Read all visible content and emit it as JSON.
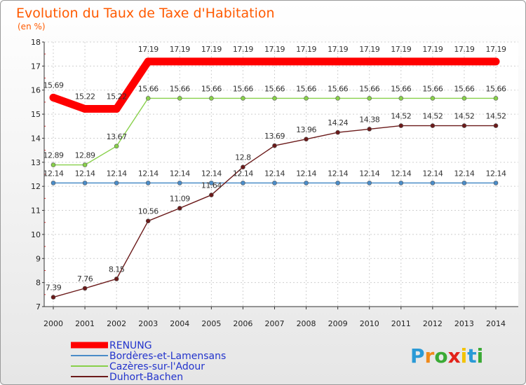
{
  "chart_data": {
    "type": "line",
    "title": "Evolution du Taux de Taxe d'Habitation",
    "subtitle": "(en %)",
    "x": [
      "2000",
      "2001",
      "2002",
      "2003",
      "2004",
      "2005",
      "2006",
      "2007",
      "2008",
      "2009",
      "2010",
      "2011",
      "2012",
      "2013",
      "2014"
    ],
    "ylim": [
      7,
      18
    ],
    "yticks": [
      7,
      8,
      9,
      10,
      11,
      12,
      13,
      14,
      15,
      16,
      17,
      18
    ],
    "grid": true,
    "legend_position": "bottom-left",
    "series": [
      {
        "name": "RENUNG",
        "color": "#ff0000",
        "values": [
          15.69,
          15.22,
          15.22,
          17.19,
          17.19,
          17.19,
          17.19,
          17.19,
          17.19,
          17.19,
          17.19,
          17.19,
          17.19,
          17.19,
          17.19
        ],
        "labels": [
          "15.69",
          "15.22",
          "15.22",
          "17.19",
          "17.19",
          "17.19",
          "17.19",
          "17.19",
          "17.19",
          "17.19",
          "17.19",
          "17.19",
          "17.19",
          "17.19",
          "17.19"
        ]
      },
      {
        "name": "Bordères-et-Lamensans",
        "color": "#4a8cc8",
        "values": [
          12.14,
          12.14,
          12.14,
          12.14,
          12.14,
          12.14,
          12.14,
          12.14,
          12.14,
          12.14,
          12.14,
          12.14,
          12.14,
          12.14,
          12.14
        ],
        "labels": [
          "12.14",
          "12.14",
          "12.14",
          "12.14",
          "12.14",
          "12.14",
          "12.14",
          "12.14",
          "12.14",
          "12.14",
          "12.14",
          "12.14",
          "12.14",
          "12.14",
          "12.14"
        ]
      },
      {
        "name": "Cazères-sur-l'Adour",
        "color": "#88d04a",
        "values": [
          12.89,
          12.89,
          13.67,
          15.66,
          15.66,
          15.66,
          15.66,
          15.66,
          15.66,
          15.66,
          15.66,
          15.66,
          15.66,
          15.66,
          15.66
        ],
        "labels": [
          "12.89",
          "12.89",
          "13.67",
          "15.66",
          "15.66",
          "15.66",
          "15.66",
          "15.66",
          "15.66",
          "15.66",
          "15.66",
          "15.66",
          "15.66",
          "15.66",
          "15.66"
        ]
      },
      {
        "name": "Duhort-Bachen",
        "color": "#6b1a1a",
        "values": [
          7.39,
          7.76,
          8.15,
          10.56,
          11.09,
          11.64,
          12.8,
          13.69,
          13.96,
          14.24,
          14.38,
          14.52,
          14.52,
          14.52,
          14.52
        ],
        "labels": [
          "7.39",
          "7.76",
          "8.15",
          "10.56",
          "11.09",
          "11.64",
          "12.8",
          "13.69",
          "13.96",
          "14.24",
          "14.38",
          "14.52",
          "14.52",
          "14.52",
          "14.52"
        ]
      }
    ]
  },
  "logo": {
    "text": "Proxiti",
    "letters": [
      "P",
      "r",
      "o",
      "x",
      "i",
      "t",
      "i"
    ],
    "colors": [
      "#2a9ad6",
      "#f08a1a",
      "#3aaa35",
      "#e2231a",
      "#f3c300",
      "#2a9ad6",
      "#3aaa35"
    ]
  }
}
